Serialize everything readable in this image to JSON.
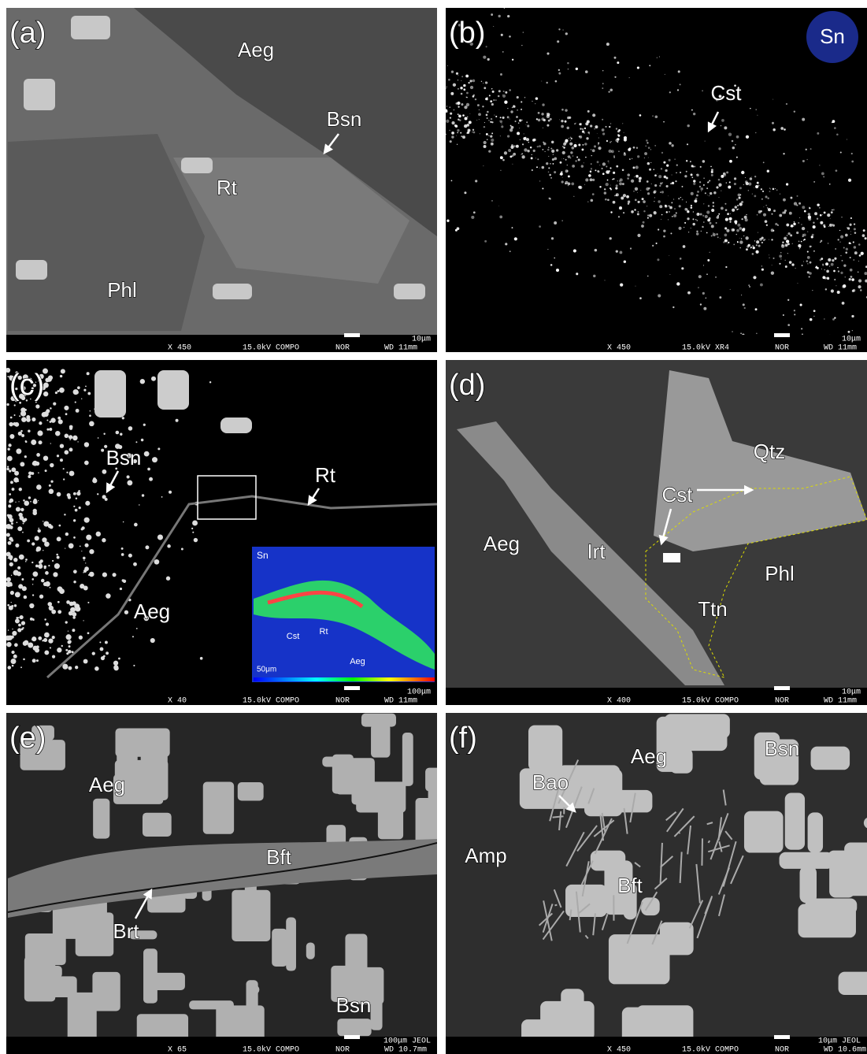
{
  "panels": [
    {
      "label": "(a)",
      "annotations": [
        "Aeg",
        "Bsn",
        "Rt",
        "Phl"
      ],
      "scale": "10μm",
      "info": [
        "X 450",
        "15.0kV COMPO",
        "NOR",
        "WD 11mm"
      ]
    },
    {
      "label": "(b)",
      "badge": "Sn",
      "annotations": [
        "Cst"
      ],
      "scale": "10μm",
      "info": [
        "X 450",
        "15.0kV XR4",
        "NOR",
        "WD 11mm"
      ]
    },
    {
      "label": "(c)",
      "annotations": [
        "Bsn",
        "Rt",
        "Aeg"
      ],
      "inset": {
        "title": "Sn",
        "labels": [
          "Cst",
          "Rt",
          "Aeg"
        ],
        "scale": "50μm"
      },
      "scale": "100μm",
      "info": [
        "X 40",
        "15.0kV COMPO",
        "NOR",
        "WD 11mm"
      ]
    },
    {
      "label": "(d)",
      "annotations": [
        "Qtz",
        "Cst",
        "Aeg",
        "Irt",
        "Phl",
        "Ttn"
      ],
      "scale": "10μm",
      "info": [
        "X 400",
        "15.0kV COMPO",
        "NOR",
        "WD 11mm"
      ]
    },
    {
      "label": "(e)",
      "annotations": [
        "Aeg",
        "Bft",
        "Brt",
        "Bsn"
      ],
      "scale": "100μm JEOL",
      "info": [
        "X 65",
        "15.0kV COMPO",
        "NOR",
        "WD 10.7mm"
      ]
    },
    {
      "label": "(f)",
      "annotations": [
        "Aeg",
        "Bsn",
        "Bao",
        "Amp",
        "Bft"
      ],
      "scale": "10μm JEOL",
      "info": [
        "X 450",
        "15.0kV COMPO",
        "NOR",
        "WD 10.6mm"
      ]
    }
  ]
}
